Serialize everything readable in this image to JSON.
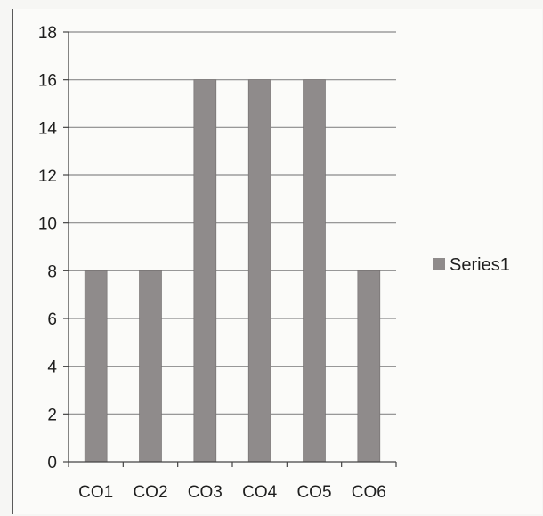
{
  "chart_data": {
    "type": "bar",
    "categories": [
      "CO1",
      "CO2",
      "CO3",
      "CO4",
      "CO5",
      "CO6"
    ],
    "series": [
      {
        "name": "Series1",
        "values": [
          8,
          8,
          16,
          16,
          16,
          8
        ]
      }
    ],
    "title": "",
    "xlabel": "",
    "ylabel": "",
    "ylim": [
      0,
      18
    ],
    "yticks": [
      0,
      2,
      4,
      6,
      8,
      10,
      12,
      14,
      16,
      18
    ],
    "grid": true,
    "legend_position": "right",
    "colors": {
      "bar": "#8f8b8b",
      "bar_edge": "#6f6b6b",
      "grid": "#8a8a8a",
      "axis": "#444444"
    }
  }
}
